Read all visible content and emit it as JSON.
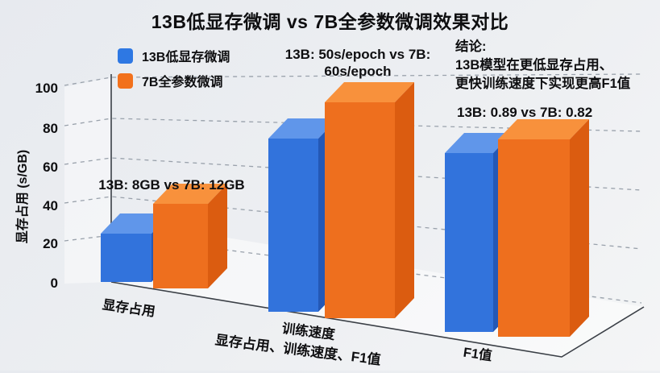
{
  "title": "13B低显存微调 vs 7B全参数微调效果对比",
  "legend": {
    "items": [
      {
        "label": "13B低显存微调",
        "color": "#2e78e3"
      },
      {
        "label": "7B全参数微调",
        "color": "#f2711c"
      }
    ]
  },
  "annotations": {
    "memory": "13B: 8GB vs 7B: 12GB",
    "speed_line1": "13B: 50s/epoch vs 7B:",
    "speed_line2": "60s/epoch",
    "conclusion_title": "结论:",
    "conclusion_line1": "13B模型在更低显存占用、",
    "conclusion_line2": "更快训练速度下实现更高F1值",
    "f1": "13B: 0.89 vs 7B: 0.82"
  },
  "axis": {
    "ylabel": "显存占用 (s/GB)",
    "yticks": [
      "100",
      "80",
      "60",
      "40",
      "20",
      "0"
    ],
    "xlabel": "显存占用、训练速度、F1值",
    "categories": [
      "显存占用",
      "训练速度",
      "F1值"
    ]
  },
  "chart_data": {
    "type": "bar",
    "projection": "3d",
    "title": "13B低显存微调 vs 7B全参数微调效果对比",
    "categories": [
      "显存占用",
      "训练速度",
      "F1值"
    ],
    "series": [
      {
        "name": "13B低显存微调",
        "values_drawn_axis_units": [
          25,
          90,
          92
        ],
        "values_stated": [
          "8GB",
          "50s/epoch",
          "0.89"
        ],
        "colors": {
          "front": "#3273dc",
          "top": "#6096ea",
          "side": "#2458b6"
        }
      },
      {
        "name": "7B全参数微调",
        "values_drawn_axis_units": [
          44,
          110,
          102
        ],
        "values_stated": [
          "12GB",
          "60s/epoch",
          "0.82"
        ],
        "colors": {
          "front": "#ee6f1e",
          "top": "#f8913c",
          "side": "#db5c10"
        }
      }
    ],
    "ylabel": "显存占用 (s/GB)",
    "xlabel": "显存占用、训练速度、F1值",
    "ylim": [
      0,
      100
    ],
    "yticks": [
      0,
      20,
      40,
      60,
      80,
      100
    ],
    "legend_position": "upper-left",
    "grid": "dashed",
    "render": {
      "depth": [
        24,
        25
      ],
      "gridlines": [
        [
          80,
          106,
          138,
          96,
          796,
          92
        ],
        [
          80,
          156,
          138,
          147,
          796,
          163
        ],
        [
          80,
          204,
          138,
          196,
          796,
          236
        ],
        [
          80,
          252,
          138,
          244,
          796,
          309
        ],
        [
          80,
          299,
          138,
          292,
          796,
          376
        ]
      ],
      "bars": [
        {
          "s": 0,
          "x": 125,
          "w": 63,
          "top": 290,
          "bot": 350
        },
        {
          "s": 1,
          "x": 190,
          "w": 68,
          "top": 253,
          "bot": 358
        },
        {
          "s": 0,
          "x": 333,
          "w": 62,
          "top": 172,
          "bot": 387
        },
        {
          "s": 1,
          "x": 403,
          "w": 87,
          "top": 127,
          "bot": 395
        },
        {
          "s": 0,
          "x": 552,
          "w": 60,
          "top": 190,
          "bot": 412
        },
        {
          "s": 1,
          "x": 618,
          "w": 89,
          "top": 173,
          "bot": 418
        }
      ]
    }
  }
}
